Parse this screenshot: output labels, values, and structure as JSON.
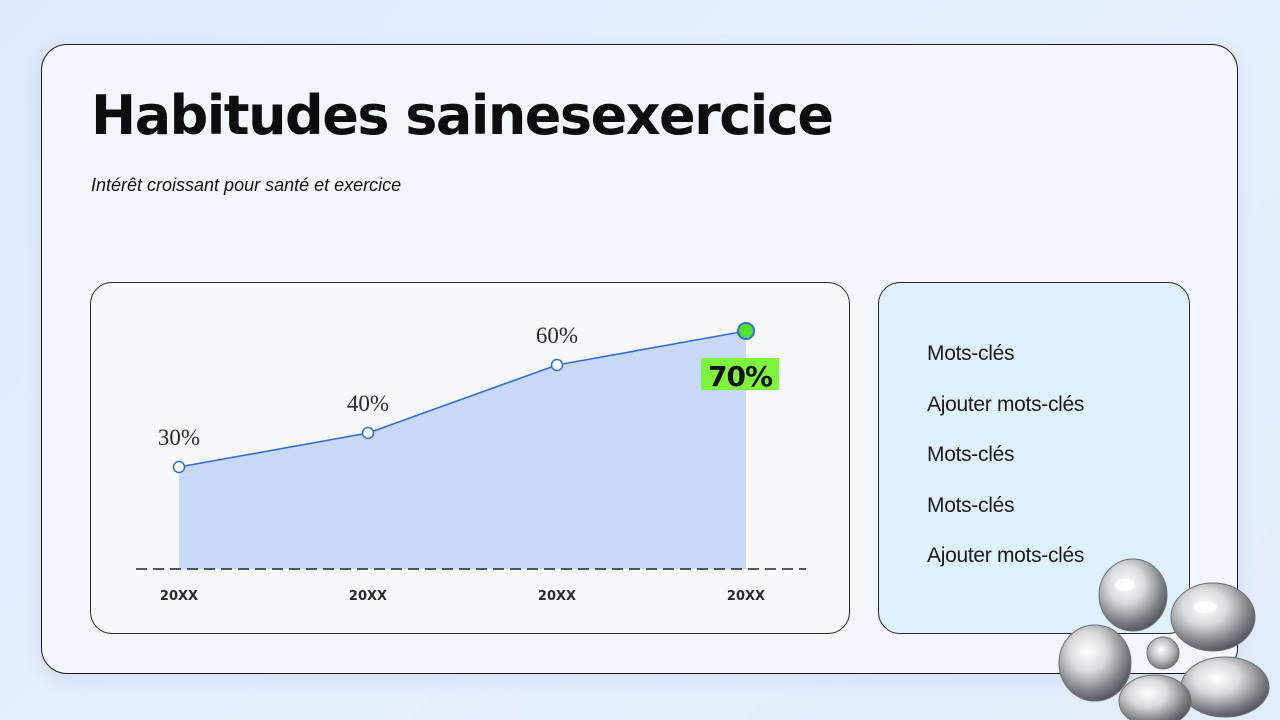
{
  "slide": {
    "title": "Habitudes sainesexercice",
    "subtitle": "Intérêt croissant pour santé et exercice"
  },
  "keywords": [
    "Mots-clés",
    "Ajouter mots-clés",
    "Mots-clés",
    "Mots-clés",
    "Ajouter mots-clés"
  ],
  "chart_data": {
    "type": "area",
    "categories": [
      "20XX",
      "20XX",
      "20XX",
      "20XX"
    ],
    "values": [
      30,
      40,
      60,
      70
    ],
    "data_labels": [
      "30%",
      "40%",
      "60%",
      "70%"
    ],
    "ylim": [
      0,
      80
    ],
    "highlight_index": 3,
    "grid": false,
    "colors": {
      "area": "#c8d8f7",
      "line": "#2e6fe0",
      "marker_fill": "#ffffff",
      "highlight_marker": "#53e22a",
      "highlight_label_bg": "#7cf53c",
      "baseline": "#222222"
    }
  },
  "decoration": {
    "flower_icon": "chrome-flower-icon"
  }
}
